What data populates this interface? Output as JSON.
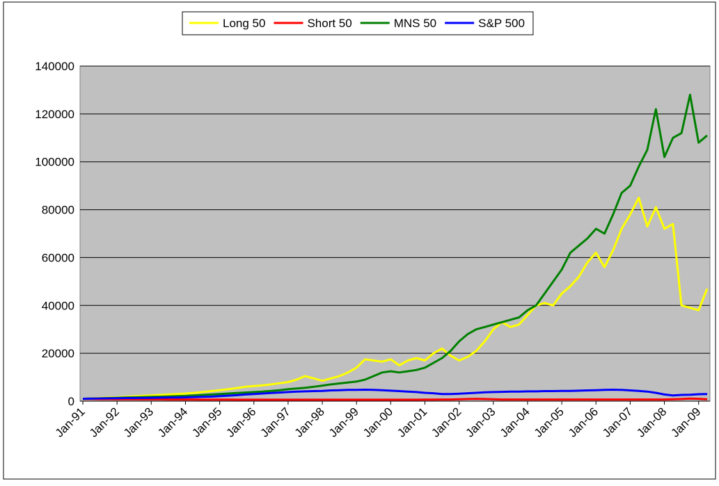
{
  "chart_data": {
    "type": "line",
    "categories": [
      "Jan-91",
      null,
      null,
      null,
      "Jan-92",
      null,
      null,
      null,
      "Jan-93",
      null,
      null,
      null,
      "Jan-94",
      null,
      null,
      null,
      "Jan-95",
      null,
      null,
      null,
      "Jan-96",
      null,
      null,
      null,
      "Jan-97",
      null,
      null,
      null,
      "Jan-98",
      null,
      null,
      null,
      "Jan-99",
      null,
      null,
      null,
      "Jan-00",
      null,
      null,
      null,
      "Jan-01",
      null,
      null,
      null,
      "Jan-02",
      null,
      null,
      null,
      "Jan-03",
      null,
      null,
      null,
      "Jan-04",
      null,
      null,
      null,
      "Jan-05",
      null,
      null,
      null,
      "Jan-06",
      null,
      null,
      null,
      "Jan-07",
      null,
      null,
      null,
      "Jan-08",
      null,
      null,
      null,
      "Jan-09",
      null
    ],
    "series": [
      {
        "name": "Long 50",
        "color": "#ffff00",
        "values": [
          1000,
          1200,
          1400,
          1500,
          1600,
          1800,
          2000,
          2200,
          2400,
          2600,
          2800,
          3000,
          3200,
          3500,
          3800,
          4200,
          4600,
          5000,
          5500,
          6000,
          6300,
          6600,
          7000,
          7500,
          8000,
          9000,
          10500,
          9500,
          8500,
          9500,
          10500,
          12000,
          14000,
          17500,
          17000,
          16500,
          17500,
          15000,
          17000,
          18000,
          17000,
          20000,
          22000,
          19000,
          17000,
          18500,
          21000,
          25000,
          30000,
          33000,
          31000,
          32000,
          36000,
          40000,
          41000,
          40000,
          45000,
          48000,
          52000,
          58000,
          62000,
          56000,
          63000,
          72000,
          78000,
          85000,
          73000,
          81000,
          72000,
          74000,
          40000,
          39000,
          38000,
          47000
        ]
      },
      {
        "name": "Short 50",
        "color": "#ff0000",
        "values": [
          900,
          900,
          850,
          850,
          800,
          800,
          800,
          750,
          750,
          750,
          700,
          700,
          700,
          700,
          650,
          650,
          650,
          650,
          600,
          600,
          600,
          600,
          600,
          600,
          600,
          600,
          600,
          600,
          600,
          600,
          600,
          600,
          600,
          600,
          600,
          600,
          600,
          600,
          600,
          600,
          650,
          650,
          700,
          700,
          800,
          900,
          1000,
          900,
          800,
          700,
          700,
          700,
          700,
          700,
          700,
          700,
          700,
          700,
          700,
          700,
          700,
          700,
          700,
          700,
          700,
          700,
          700,
          700,
          700,
          800,
          900,
          1100,
          1000,
          800
        ]
      },
      {
        "name": "MNS 50",
        "color": "#008000",
        "values": [
          1000,
          1100,
          1200,
          1300,
          1400,
          1500,
          1600,
          1700,
          1800,
          1900,
          2000,
          2100,
          2200,
          2400,
          2600,
          2800,
          3000,
          3200,
          3400,
          3600,
          3800,
          4000,
          4300,
          4600,
          5000,
          5300,
          5600,
          6000,
          6500,
          7000,
          7400,
          7800,
          8200,
          9000,
          10500,
          12000,
          12500,
          12000,
          12500,
          13000,
          14000,
          16000,
          18000,
          21000,
          25000,
          28000,
          30000,
          31000,
          32000,
          33000,
          34000,
          35000,
          38000,
          40000,
          45000,
          50000,
          55000,
          62000,
          65000,
          68000,
          72000,
          70000,
          78000,
          87000,
          90000,
          98000,
          105000,
          122000,
          102000,
          110000,
          112000,
          128000,
          108000,
          111000
        ]
      },
      {
        "name": "S&P 500",
        "color": "#0000ff",
        "values": [
          1000,
          1100,
          1150,
          1200,
          1250,
          1300,
          1300,
          1350,
          1400,
          1450,
          1500,
          1550,
          1600,
          1700,
          1800,
          1900,
          2100,
          2300,
          2500,
          2800,
          3000,
          3200,
          3400,
          3600,
          3800,
          4000,
          4100,
          4200,
          4300,
          4500,
          4600,
          4700,
          4700,
          4800,
          4700,
          4600,
          4400,
          4200,
          4000,
          3800,
          3500,
          3300,
          3000,
          3000,
          3100,
          3300,
          3500,
          3700,
          3800,
          3900,
          4000,
          4000,
          4100,
          4100,
          4200,
          4200,
          4300,
          4300,
          4400,
          4500,
          4600,
          4700,
          4800,
          4700,
          4500,
          4300,
          4000,
          3500,
          2800,
          2400,
          2600,
          2700,
          2900,
          3000
        ]
      }
    ],
    "ylim": [
      0,
      140000
    ],
    "yticks": [
      0,
      20000,
      40000,
      60000,
      80000,
      100000,
      120000,
      140000
    ],
    "grid": true,
    "legend": "top",
    "plot_background": "#c0c0c0"
  }
}
